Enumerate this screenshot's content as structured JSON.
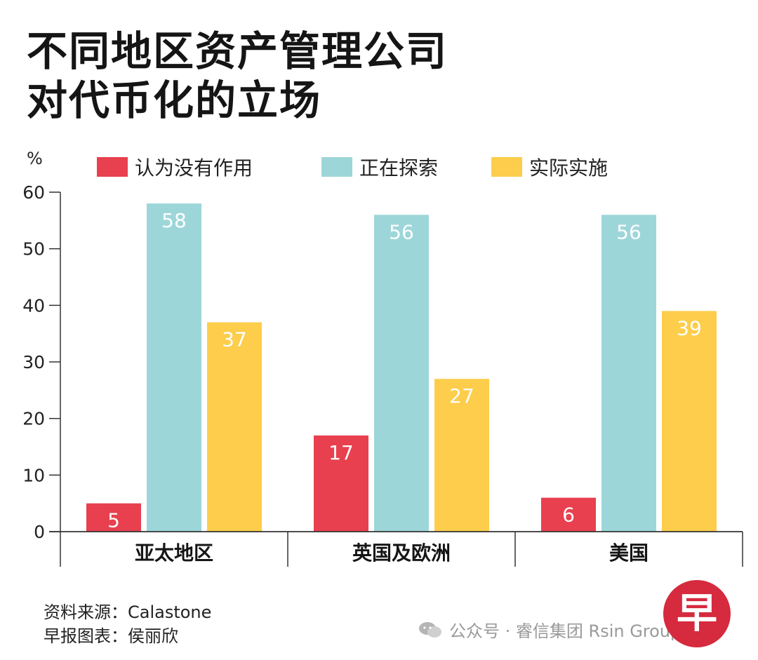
{
  "title_lines": [
    "不同地区资产管理公司",
    "对代币化的立场"
  ],
  "unit_label": "%",
  "source_lines": [
    "资料来源：Calastone",
    "早报图表：侯丽欣"
  ],
  "watermark": "公众号 · 睿信集团 Rsin Group",
  "logo_char": "早",
  "chart_data": {
    "type": "bar",
    "categories": [
      "亚太地区",
      "英国及欧洲",
      "美国"
    ],
    "series": [
      {
        "name": "认为没有作用",
        "color": "#e8404e",
        "values": [
          5,
          17,
          6
        ]
      },
      {
        "name": "正在探索",
        "color": "#9dd6d9",
        "values": [
          58,
          56,
          56
        ]
      },
      {
        "name": "实际实施",
        "color": "#fdcd4b",
        "values": [
          37,
          27,
          39
        ]
      }
    ],
    "ylim": [
      0,
      60
    ],
    "yticks": [
      0,
      10,
      20,
      30,
      40,
      50,
      60
    ],
    "grid": false,
    "legend": "top"
  }
}
